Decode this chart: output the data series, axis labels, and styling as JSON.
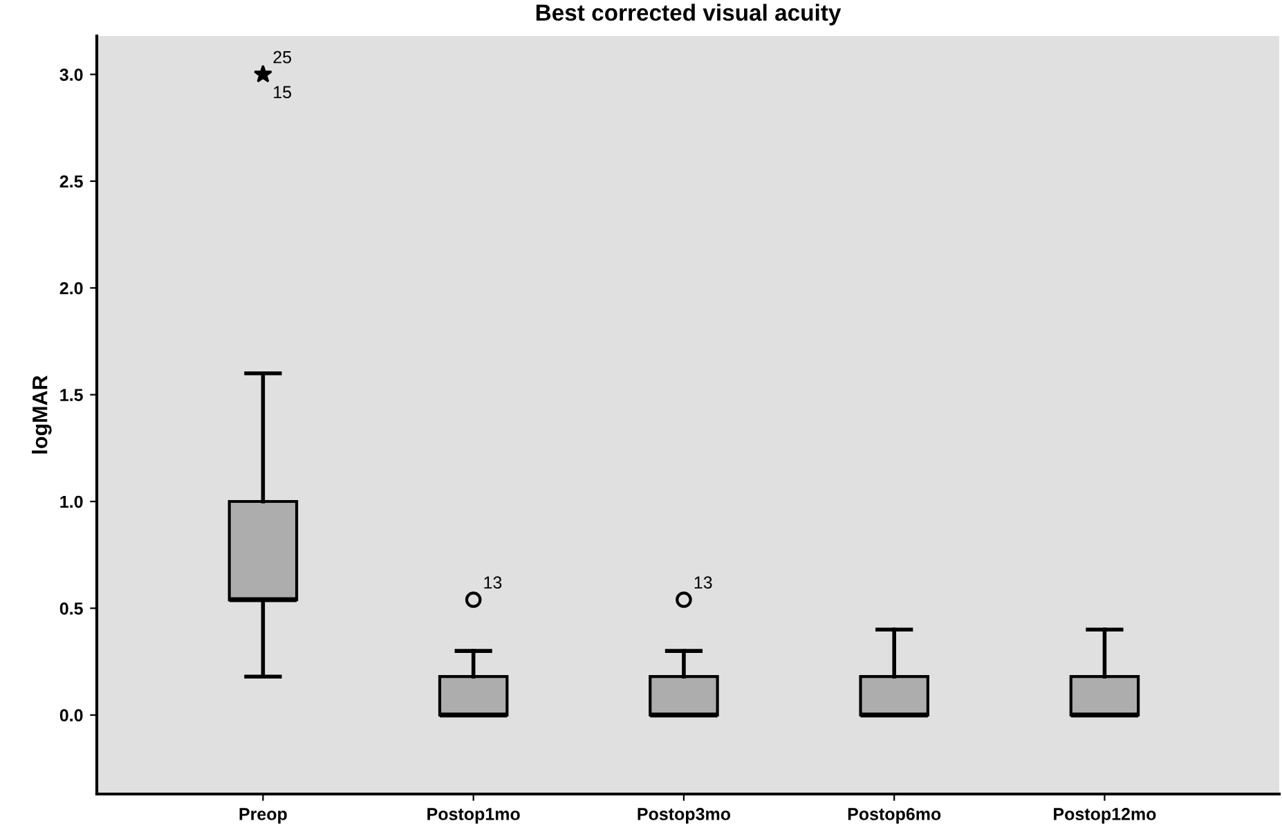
{
  "chart_data": {
    "type": "box",
    "title": "Best corrected visual acuity",
    "ylabel": "logMAR",
    "categories": [
      "Preop",
      "Postop1mo",
      "Postop3mo",
      "Postop6mo",
      "Postop12mo"
    ],
    "boxes": [
      {
        "low": 0.18,
        "q1": 0.54,
        "median": 0.54,
        "q3": 1.0,
        "high": 1.6,
        "outliers": [
          3.0,
          3.0
        ]
      },
      {
        "low": 0.0,
        "q1": 0.0,
        "median": 0.0,
        "q3": 0.18,
        "high": 0.3,
        "outliers": [
          0.54
        ]
      },
      {
        "low": 0.0,
        "q1": 0.0,
        "median": 0.0,
        "q3": 0.18,
        "high": 0.3,
        "outliers": [
          0.54
        ]
      },
      {
        "low": 0.0,
        "q1": 0.0,
        "median": 0.0,
        "q3": 0.18,
        "high": 0.4
      },
      {
        "low": 0.0,
        "q1": 0.0,
        "median": 0.0,
        "q3": 0.18,
        "high": 0.4
      }
    ],
    "color": "#adadad",
    "ylim": [
      -0.37,
      3.18
    ],
    "yticks": [
      {
        "value": 0,
        "label": "0.0"
      },
      0.5,
      {
        "value": 1,
        "label": "1.0"
      },
      1.5,
      {
        "value": 2,
        "label": "2.0"
      },
      2.5,
      {
        "value": 3,
        "label": "3.0"
      }
    ],
    "grid": false,
    "annotations": [
      "25",
      "15",
      "13",
      "13"
    ]
  }
}
